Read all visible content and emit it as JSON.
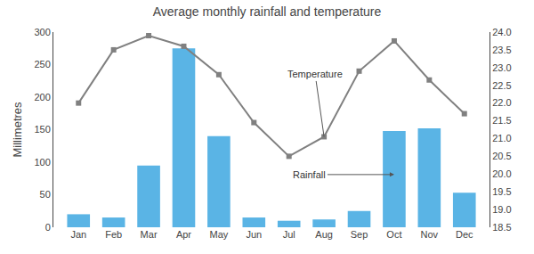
{
  "chart_data": {
    "type": "bar",
    "title": "Average monthly rainfall and temperature",
    "ylabel": "Millimetres",
    "categories": [
      "Jan",
      "Feb",
      "Mar",
      "Apr",
      "May",
      "Jun",
      "Jul",
      "Aug",
      "Sep",
      "Oct",
      "Nov",
      "Dec"
    ],
    "series": [
      {
        "type": "bar",
        "color": "#5ab4e5",
        "axis": "y",
        "values": [
          20,
          15,
          95,
          275,
          140,
          15,
          10,
          12,
          25,
          148,
          152,
          53
        ]
      },
      {
        "type": "line",
        "color": "#808080",
        "marker": "square",
        "axis": "y2",
        "values": [
          22.0,
          23.5,
          23.9,
          23.6,
          22.8,
          21.45,
          20.5,
          21.05,
          22.9,
          23.75,
          22.65,
          21.7
        ]
      }
    ],
    "ylim": [
      0,
      300
    ],
    "yticks": [
      0,
      50,
      100,
      150,
      200,
      250,
      300
    ],
    "y2lim": [
      18.5,
      24.0
    ],
    "y2ticks": [
      18.5,
      {
        "value": 19,
        "label": "19.0"
      },
      19.5,
      {
        "value": 20,
        "label": "20.0"
      },
      20.5,
      {
        "value": 21,
        "label": "21.0"
      },
      21.5,
      {
        "value": 22,
        "label": "22.0"
      },
      22.5,
      {
        "value": 23,
        "label": "23.0"
      },
      23.5,
      {
        "value": 24,
        "label": "24.0"
      }
    ],
    "annotations": [
      "Rainfall",
      "Temperature"
    ],
    "grid": false
  }
}
